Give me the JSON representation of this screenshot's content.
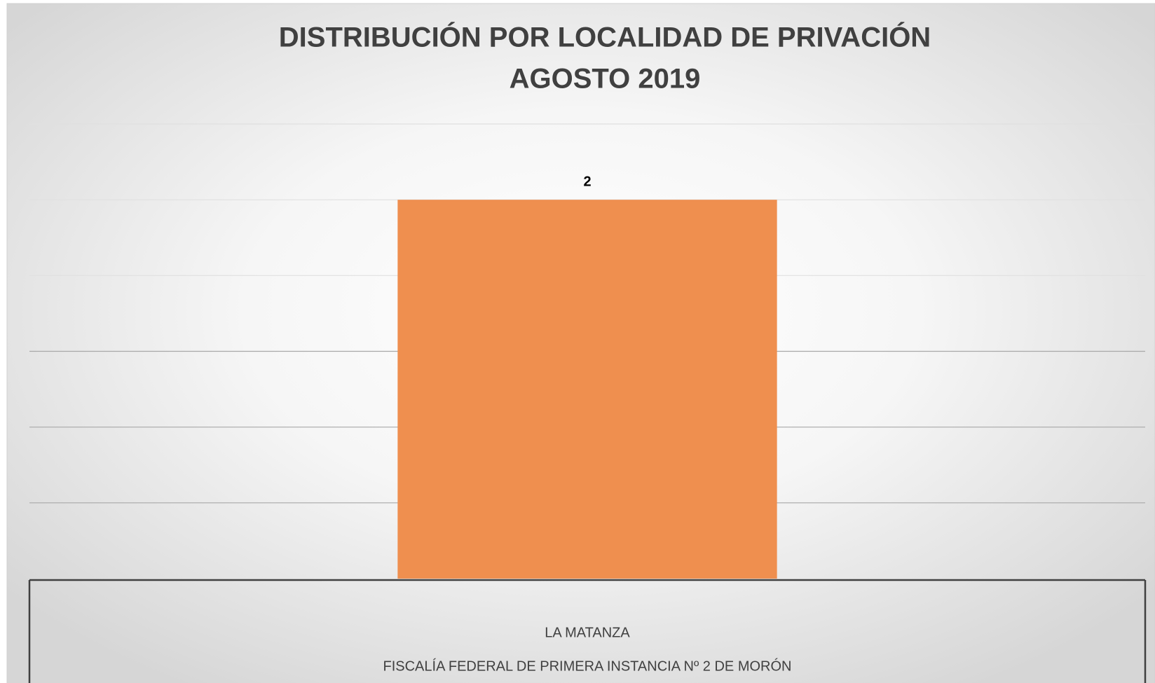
{
  "chart_data": {
    "type": "bar",
    "title": "DISTRIBUCIÓN POR LOCALIDAD DE PRIVACIÓN",
    "subtitle": "AGOSTO 2019",
    "categories": [
      "LA MATANZA"
    ],
    "category_groups": [
      "FISCALÍA FEDERAL DE PRIMERA INSTANCIA Nº 2 DE MORÓN"
    ],
    "values": [
      2
    ],
    "color": "#ef8f4f",
    "ylim": [
      0,
      2.4
    ],
    "yticks": [
      0,
      0.4,
      0.8,
      1.2,
      1.6,
      2,
      2.4
    ],
    "grid": true
  }
}
